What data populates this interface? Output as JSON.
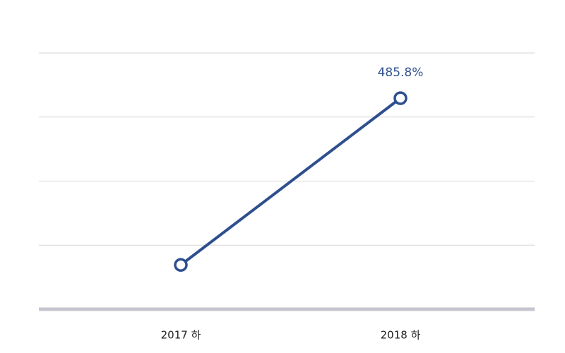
{
  "chart_data": {
    "type": "line",
    "categories": [
      "2017 하",
      "2018 하"
    ],
    "series": [
      {
        "values": [
          102,
          485.8
        ],
        "value_labels": [
          null,
          "485.8%"
        ],
        "color": "#2e4f8f"
      }
    ],
    "ylim": [
      0,
      590
    ],
    "yticks": [
      0,
      147.5,
      295,
      442.5,
      590
    ],
    "grid": true
  }
}
